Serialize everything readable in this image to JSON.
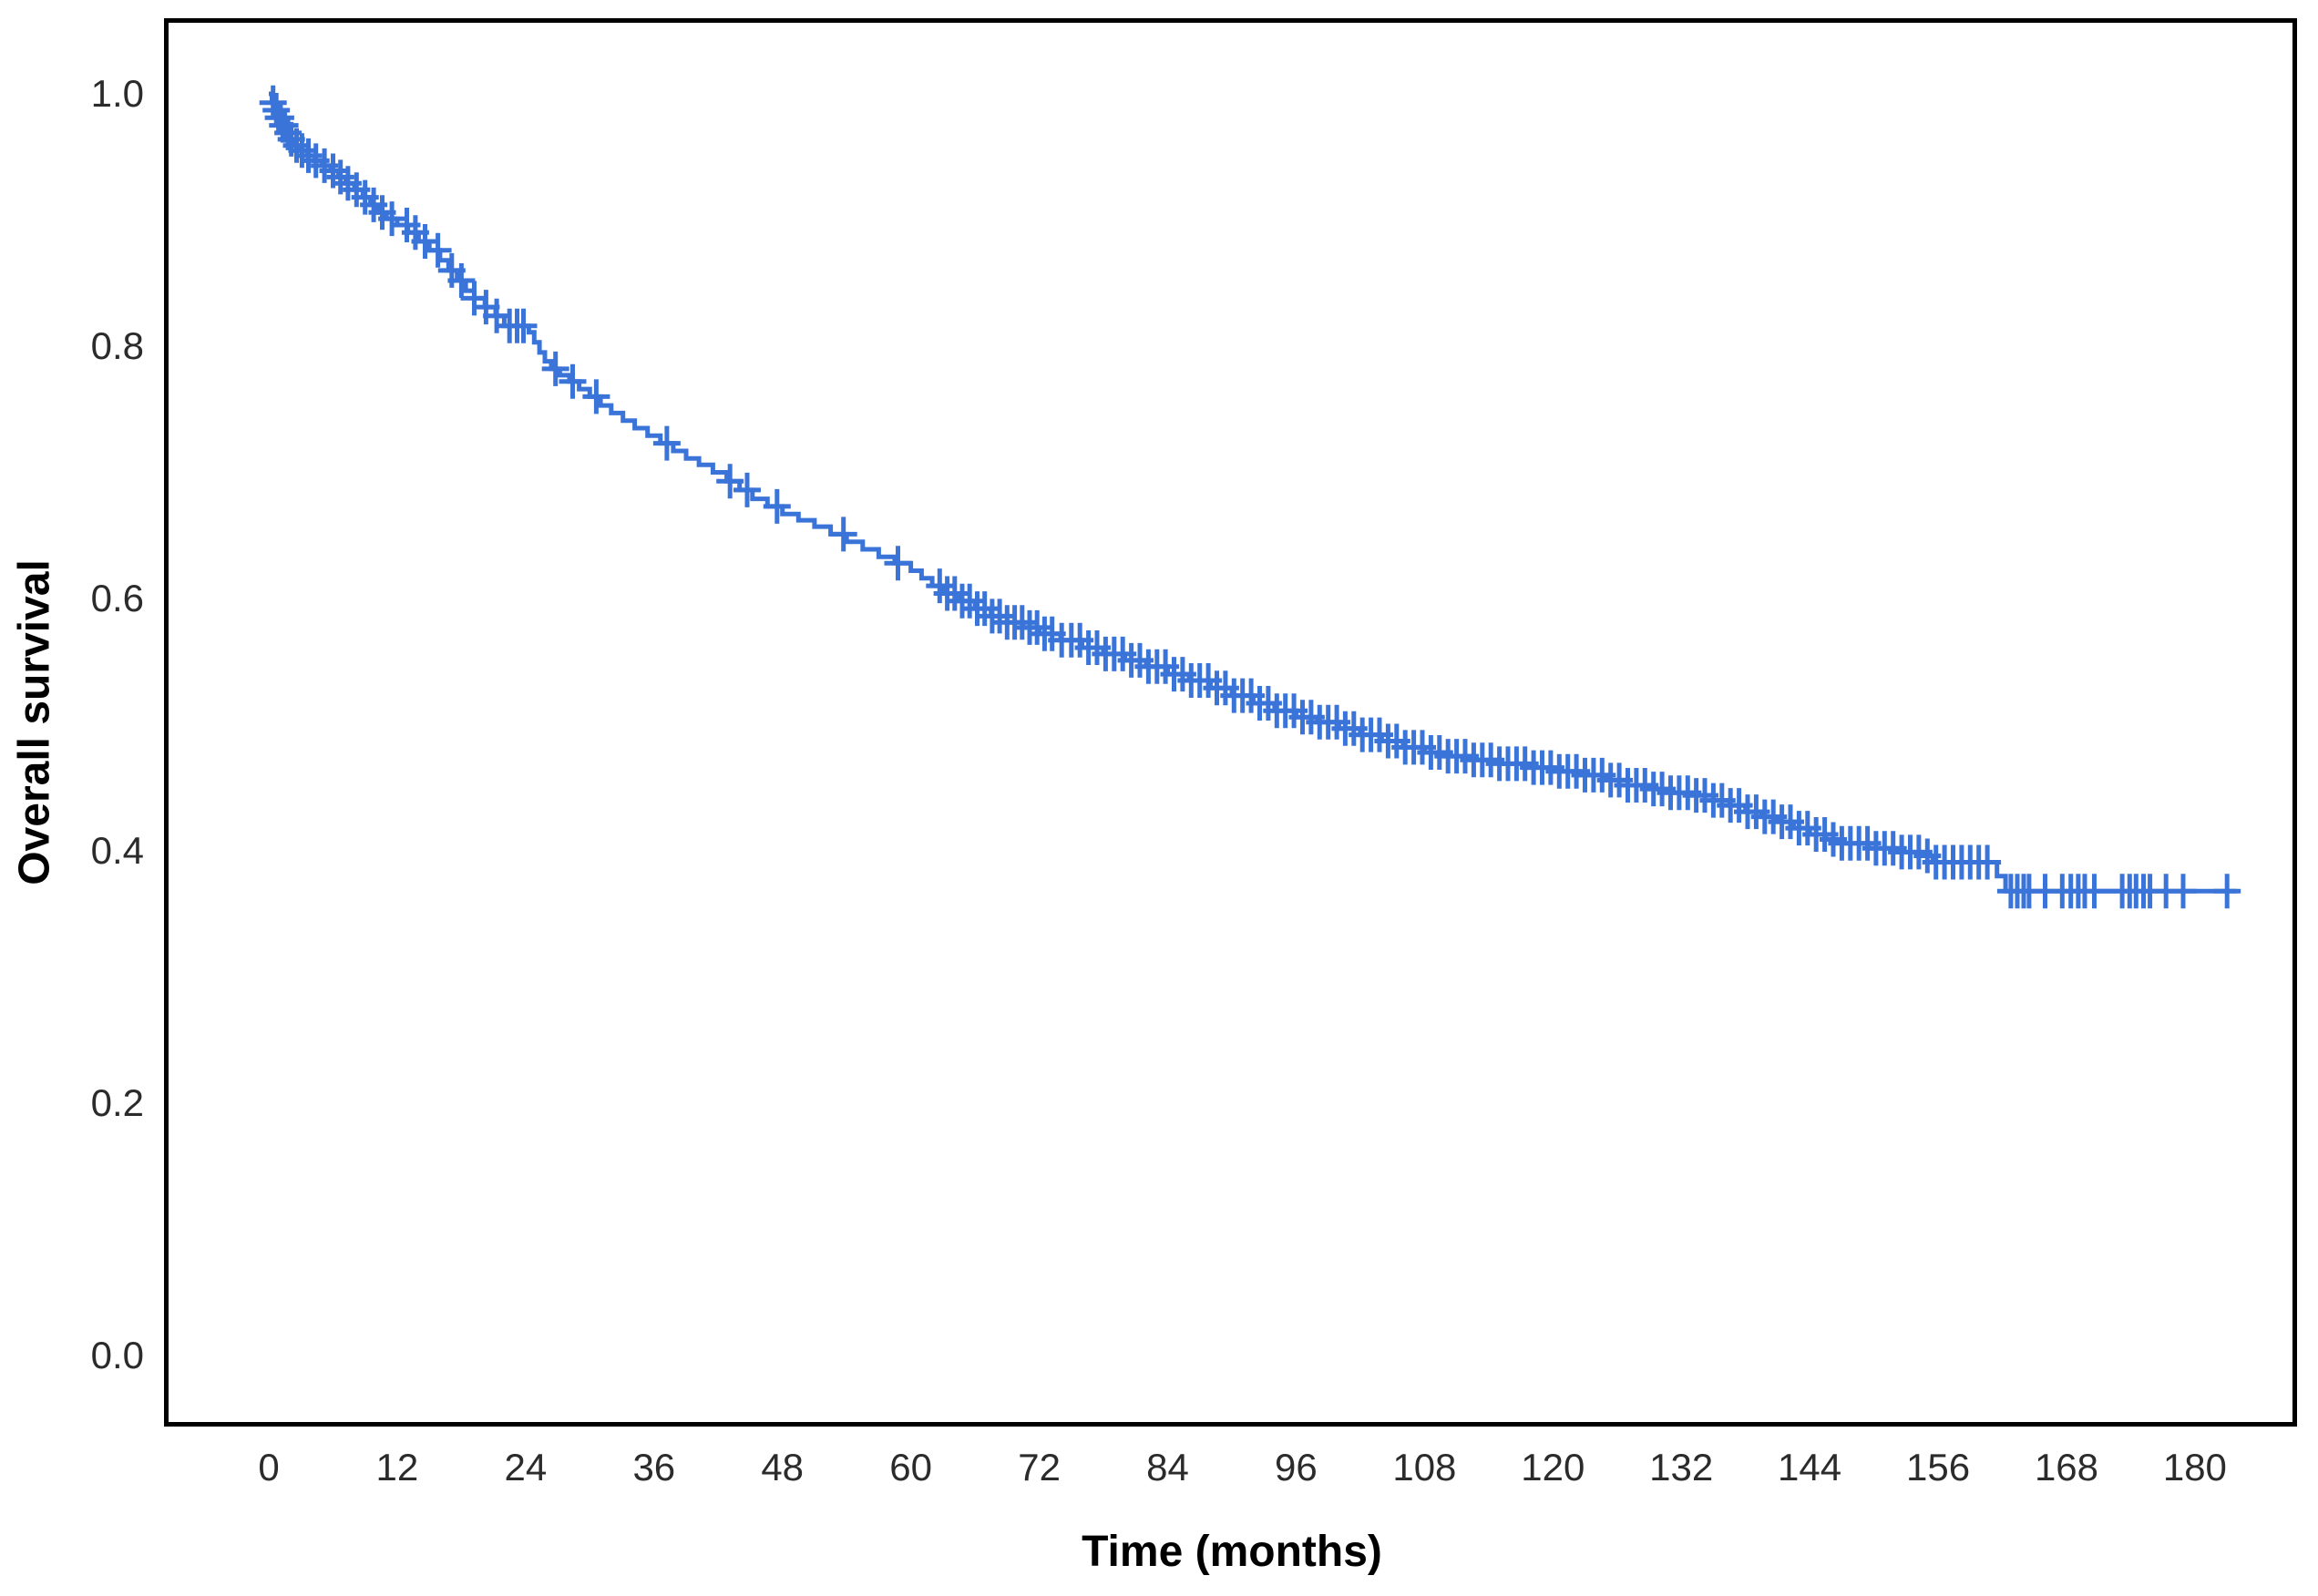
{
  "figure": {
    "background": "#ffffff",
    "axis_box_color": "#000000",
    "tick_label_color": "#2b2b2b"
  },
  "chart_data": {
    "type": "line",
    "subtype": "kaplan-meier-step-curve",
    "title": "",
    "xlabel": "Time (months)",
    "ylabel": "Overall survival",
    "legend": "none",
    "grid": false,
    "xlim": [
      0,
      180
    ],
    "ylim": [
      0.0,
      1.0
    ],
    "x_tick_labels": [
      "0",
      "12",
      "24",
      "36",
      "48",
      "60",
      "72",
      "84",
      "96",
      "108",
      "120",
      "132",
      "144",
      "156",
      "168",
      "180"
    ],
    "x_tick_values": [
      0,
      12,
      24,
      36,
      48,
      60,
      72,
      84,
      96,
      108,
      120,
      132,
      144,
      156,
      168,
      180
    ],
    "y_tick_labels": [
      "1.0",
      "0.8",
      "0.6",
      "0.4",
      "0.2",
      "0.0"
    ],
    "y_tick_values": [
      1.0,
      0.8,
      0.6,
      0.4,
      0.2,
      0.0
    ],
    "series": [
      {
        "name": "Overall survival",
        "color": "#3B74D8",
        "censor_marker": "plus",
        "end_time": 183.9,
        "steps": [
          [
            0,
            1.0
          ],
          [
            0.3,
            0.993
          ],
          [
            0.6,
            0.987
          ],
          [
            0.9,
            0.981
          ],
          [
            1.2,
            0.975
          ],
          [
            1.6,
            0.969
          ],
          [
            2.0,
            0.964
          ],
          [
            2.5,
            0.959
          ],
          [
            3.0,
            0.955
          ],
          [
            3.6,
            0.951
          ],
          [
            4.3,
            0.947
          ],
          [
            5.0,
            0.943
          ],
          [
            5.8,
            0.939
          ],
          [
            6.5,
            0.934
          ],
          [
            7.2,
            0.929
          ],
          [
            8.0,
            0.924
          ],
          [
            8.8,
            0.918
          ],
          [
            9.5,
            0.912
          ],
          [
            10.2,
            0.906
          ],
          [
            11.0,
            0.901
          ],
          [
            12.0,
            0.896
          ],
          [
            13.0,
            0.89
          ],
          [
            14.0,
            0.883
          ],
          [
            15.0,
            0.876
          ],
          [
            16.0,
            0.868
          ],
          [
            16.8,
            0.86
          ],
          [
            17.6,
            0.852
          ],
          [
            18.4,
            0.844
          ],
          [
            19.2,
            0.838
          ],
          [
            20.2,
            0.831
          ],
          [
            21.2,
            0.824
          ],
          [
            22.0,
            0.816
          ],
          [
            24.3,
            0.811
          ],
          [
            24.8,
            0.803
          ],
          [
            25.3,
            0.795
          ],
          [
            25.8,
            0.788
          ],
          [
            26.4,
            0.782
          ],
          [
            27.2,
            0.777
          ],
          [
            28.1,
            0.772
          ],
          [
            29.0,
            0.766
          ],
          [
            30.0,
            0.76
          ],
          [
            31.0,
            0.753
          ],
          [
            32.0,
            0.747
          ],
          [
            33.1,
            0.741
          ],
          [
            34.2,
            0.735
          ],
          [
            35.4,
            0.729
          ],
          [
            36.6,
            0.723
          ],
          [
            37.8,
            0.717
          ],
          [
            39.0,
            0.711
          ],
          [
            40.2,
            0.706
          ],
          [
            41.5,
            0.7
          ],
          [
            42.8,
            0.693
          ],
          [
            44.0,
            0.686
          ],
          [
            45.2,
            0.679
          ],
          [
            46.6,
            0.673
          ],
          [
            48.0,
            0.667
          ],
          [
            49.5,
            0.662
          ],
          [
            51.0,
            0.657
          ],
          [
            52.5,
            0.651
          ],
          [
            54.0,
            0.645
          ],
          [
            55.5,
            0.639
          ],
          [
            57.0,
            0.633
          ],
          [
            58.5,
            0.628
          ],
          [
            60.0,
            0.622
          ],
          [
            61.0,
            0.616
          ],
          [
            62.0,
            0.61
          ],
          [
            63.0,
            0.604
          ],
          [
            64.5,
            0.598
          ],
          [
            66.0,
            0.592
          ],
          [
            67.5,
            0.586
          ],
          [
            69.0,
            0.581
          ],
          [
            70.5,
            0.577
          ],
          [
            72.0,
            0.572
          ],
          [
            74.0,
            0.567
          ],
          [
            76.0,
            0.561
          ],
          [
            78.0,
            0.556
          ],
          [
            80.0,
            0.551
          ],
          [
            82.0,
            0.546
          ],
          [
            84.0,
            0.54
          ],
          [
            86.0,
            0.535
          ],
          [
            88.0,
            0.529
          ],
          [
            90.0,
            0.523
          ],
          [
            92.0,
            0.517
          ],
          [
            94.0,
            0.511
          ],
          [
            96.0,
            0.506
          ],
          [
            98.0,
            0.502
          ],
          [
            100.0,
            0.497
          ],
          [
            102.0,
            0.492
          ],
          [
            104.0,
            0.487
          ],
          [
            106.0,
            0.482
          ],
          [
            108.0,
            0.478
          ],
          [
            110.0,
            0.475
          ],
          [
            112.5,
            0.472
          ],
          [
            115.0,
            0.469
          ],
          [
            117.5,
            0.466
          ],
          [
            120.0,
            0.463
          ],
          [
            122.5,
            0.46
          ],
          [
            125.0,
            0.456
          ],
          [
            127.0,
            0.452
          ],
          [
            129.0,
            0.449
          ],
          [
            131.0,
            0.446
          ],
          [
            133.0,
            0.444
          ],
          [
            135.0,
            0.44
          ],
          [
            136.5,
            0.436
          ],
          [
            138.0,
            0.431
          ],
          [
            139.5,
            0.427
          ],
          [
            141.0,
            0.423
          ],
          [
            142.5,
            0.418
          ],
          [
            144.0,
            0.413
          ],
          [
            145.5,
            0.409
          ],
          [
            147.0,
            0.406
          ],
          [
            149.5,
            0.402
          ],
          [
            152.0,
            0.399
          ],
          [
            154.5,
            0.396
          ],
          [
            155.5,
            0.391
          ],
          [
            161.5,
            0.38
          ],
          [
            162.3,
            0.368
          ]
        ],
        "censor_times": [
          0.4,
          0.7,
          0.9,
          1.1,
          1.3,
          1.5,
          1.8,
          2.1,
          2.6,
          3.1,
          3.7,
          4.4,
          5.2,
          6.0,
          6.7,
          7.4,
          8.2,
          9.0,
          9.8,
          10.6,
          11.5,
          12.9,
          13.7,
          14.6,
          15.8,
          17.1,
          18.0,
          19.2,
          20.3,
          21.3,
          22.5,
          23.2,
          23.8,
          26.8,
          28.4,
          30.6,
          37.2,
          43.1,
          44.7,
          47.5,
          53.7,
          58.8,
          62.7,
          63.4,
          64.1,
          64.8,
          65.5,
          66.2,
          66.9,
          67.6,
          68.3,
          69.0,
          69.7,
          70.4,
          71.1,
          71.8,
          72.5,
          73.2,
          74.1,
          75.0,
          75.8,
          76.6,
          77.4,
          78.2,
          79.0,
          79.8,
          80.6,
          81.4,
          82.2,
          83.0,
          83.8,
          84.6,
          85.4,
          86.2,
          87.0,
          87.8,
          88.6,
          89.4,
          90.2,
          91.0,
          91.8,
          92.6,
          93.4,
          94.2,
          95.0,
          95.8,
          96.6,
          97.4,
          98.2,
          99.0,
          99.8,
          100.6,
          101.4,
          102.2,
          103.0,
          103.8,
          104.6,
          105.4,
          106.2,
          107.0,
          107.8,
          108.6,
          109.4,
          110.2,
          111.0,
          111.8,
          112.6,
          113.4,
          114.2,
          115.0,
          115.8,
          116.6,
          117.4,
          118.2,
          119.0,
          119.8,
          120.6,
          121.4,
          122.2,
          123.0,
          123.8,
          124.6,
          125.4,
          126.2,
          127.0,
          127.8,
          128.6,
          129.4,
          130.2,
          131.0,
          131.8,
          132.6,
          133.4,
          134.2,
          135.0,
          135.8,
          136.6,
          137.4,
          138.2,
          139.0,
          139.8,
          140.6,
          141.4,
          142.2,
          143.0,
          143.8,
          144.6,
          145.4,
          146.2,
          147.0,
          147.8,
          148.6,
          149.4,
          150.2,
          151.0,
          151.8,
          152.6,
          153.4,
          154.2,
          155.0,
          155.8,
          156.6,
          157.4,
          158.2,
          159.0,
          159.8,
          160.6,
          162.8,
          163.4,
          164.0,
          164.5,
          166.0,
          167.6,
          168.4,
          169.1,
          169.7,
          170.6,
          173.2,
          173.9,
          174.5,
          175.2,
          175.8,
          177.3,
          178.9,
          183.0
        ]
      }
    ]
  }
}
